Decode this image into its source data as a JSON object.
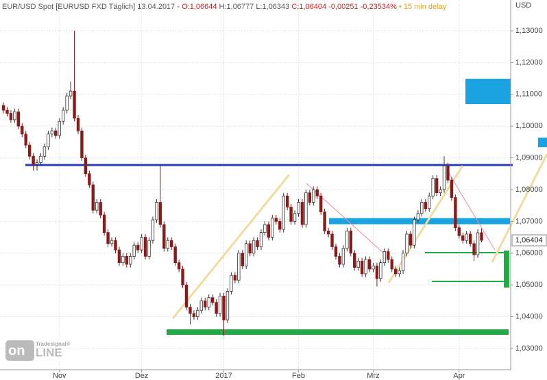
{
  "chart_data": {
    "type": "candlestick",
    "header": {
      "instrument": "EUR/USD Spot [EURUSD FXD Täglich] 13.04.2017 -",
      "open": "O:1,06644",
      "high": "H:1,06777",
      "low": "L:1,06343",
      "close": "C:1,06404 -0,00251 -0,23534%",
      "delay": "• 15 min delay"
    },
    "y_axis_label": "USD",
    "last_price_label": "1,06404",
    "logo": {
      "brand": "Tradesignal®",
      "on": "on",
      "line": "LINE"
    },
    "up_color": "#ffffff",
    "down_color": "#8b1a1a",
    "outline_color": "#333333",
    "grid": true,
    "xlim": [
      -0.92,
      135.8
    ],
    "xticks": [
      {
        "value": 15,
        "label": "Nov"
      },
      {
        "value": 37,
        "label": "Dez"
      },
      {
        "value": 59,
        "label": "2017"
      },
      {
        "value": 79,
        "label": "Feb"
      },
      {
        "value": 99,
        "label": "Mrz"
      },
      {
        "value": 122,
        "label": "Apr"
      }
    ],
    "ylim": [
      1.0233,
      1.1397
    ],
    "yticks": [
      {
        "value": 1.03,
        "label": "1,03000"
      },
      {
        "value": 1.04,
        "label": "1,04000"
      },
      {
        "value": 1.05,
        "label": "1,05000"
      },
      {
        "value": 1.06,
        "label": "1,06000"
      },
      {
        "value": 1.07,
        "label": "1,07000"
      },
      {
        "value": 1.08,
        "label": "1,08000"
      },
      {
        "value": 1.09,
        "label": "1,09000"
      },
      {
        "value": 1.1,
        "label": "1,10000"
      },
      {
        "value": 1.11,
        "label": "1,11000"
      },
      {
        "value": 1.12,
        "label": "1,12000"
      },
      {
        "value": 1.13,
        "label": "1,13000"
      }
    ],
    "open": [
      1.1065,
      1.105,
      1.104,
      1.102,
      1.1045,
      1.1,
      1.0975,
      1.094,
      1.0905,
      1.088,
      1.0885,
      1.0905,
      1.0935,
      1.0975,
      1.0985,
      1.097,
      1.1015,
      1.105,
      1.1095,
      1.111,
      1.1025,
      1.0985,
      1.09,
      1.085,
      1.0815,
      1.0735,
      1.076,
      1.072,
      1.0665,
      1.063,
      1.064,
      1.061,
      1.057,
      1.059,
      1.0565,
      1.059,
      1.0625,
      1.061,
      1.065,
      1.059,
      1.064,
      1.0705,
      1.076,
      1.069,
      1.0615,
      1.064,
      1.062,
      1.057,
      1.055,
      1.05,
      1.043,
      1.041,
      1.04,
      1.042,
      1.045,
      1.043,
      1.046,
      1.0445,
      1.041,
      1.0465,
      1.039,
      1.048,
      1.053,
      1.0515,
      1.06,
      1.056,
      1.063,
      1.06,
      1.064,
      1.062,
      1.0665,
      1.069,
      1.065,
      1.071,
      1.07,
      1.0675,
      1.078,
      1.0745,
      1.07,
      1.0725,
      1.076,
      1.069,
      1.079,
      1.076,
      1.08,
      1.078,
      1.073,
      1.067,
      1.066,
      1.062,
      1.059,
      1.0565,
      1.0615,
      1.067,
      1.06,
      1.0555,
      1.0575,
      1.0535,
      1.058,
      1.055,
      1.056,
      1.052,
      1.057,
      1.0605,
      1.058,
      1.055,
      1.0535,
      1.0545,
      1.06,
      1.066,
      1.0625,
      1.0705,
      1.0725,
      1.076,
      1.074,
      1.078,
      1.0835,
      1.079,
      1.08,
      1.0875,
      1.083,
      1.0775,
      1.068,
      1.0655,
      1.064,
      1.066,
      1.063,
      1.0595,
      1.06644
    ],
    "high": [
      1.1075,
      1.106,
      1.105,
      1.1055,
      1.1055,
      1.101,
      1.0985,
      1.095,
      1.0915,
      1.0895,
      1.0915,
      1.0945,
      1.0985,
      1.0995,
      1.0995,
      1.1025,
      1.106,
      1.1105,
      1.114,
      1.13,
      1.1035,
      1.0995,
      1.091,
      1.086,
      1.0825,
      1.077,
      1.077,
      1.073,
      1.0675,
      1.065,
      1.065,
      1.062,
      1.06,
      1.06,
      1.06,
      1.0635,
      1.0635,
      1.066,
      1.066,
      1.065,
      1.0715,
      1.077,
      1.0875,
      1.07,
      1.065,
      1.065,
      1.063,
      1.058,
      1.056,
      1.051,
      1.044,
      1.042,
      1.043,
      1.046,
      1.046,
      1.047,
      1.047,
      1.0455,
      1.0475,
      1.0475,
      1.049,
      1.054,
      1.054,
      1.061,
      1.061,
      1.064,
      1.064,
      1.065,
      1.065,
      1.0675,
      1.07,
      1.07,
      1.072,
      1.072,
      1.071,
      1.079,
      1.079,
      1.0755,
      1.0735,
      1.077,
      1.077,
      1.08,
      1.08,
      1.081,
      1.081,
      1.079,
      1.074,
      1.068,
      1.067,
      1.063,
      1.06,
      1.0625,
      1.068,
      1.068,
      1.061,
      1.0585,
      1.0585,
      1.059,
      1.059,
      1.057,
      1.057,
      1.058,
      1.0615,
      1.0615,
      1.059,
      1.056,
      1.0555,
      1.061,
      1.067,
      1.067,
      1.0715,
      1.0735,
      1.077,
      1.077,
      1.079,
      1.0845,
      1.0845,
      1.081,
      1.0905,
      1.0885,
      1.084,
      1.0785,
      1.069,
      1.0665,
      1.067,
      1.067,
      1.064,
      1.0675,
      1.06777
    ],
    "low": [
      1.104,
      1.103,
      1.101,
      1.101,
      1.099,
      1.0965,
      1.093,
      1.0895,
      1.086,
      1.086,
      1.0875,
      1.0895,
      1.0925,
      1.0965,
      1.096,
      1.096,
      1.1005,
      1.104,
      1.1085,
      1.1015,
      1.0975,
      1.089,
      1.084,
      1.0805,
      1.0725,
      1.0725,
      1.071,
      1.0655,
      1.062,
      1.062,
      1.06,
      1.056,
      1.056,
      1.0555,
      1.0555,
      1.058,
      1.06,
      1.06,
      1.058,
      1.058,
      1.063,
      1.0695,
      1.068,
      1.0605,
      1.0605,
      1.061,
      1.056,
      1.054,
      1.049,
      1.042,
      1.0375,
      1.039,
      1.039,
      1.041,
      1.042,
      1.042,
      1.0435,
      1.04,
      1.04,
      1.034,
      1.038,
      1.047,
      1.0505,
      1.0505,
      1.055,
      1.055,
      1.059,
      1.059,
      1.061,
      1.061,
      1.0655,
      1.064,
      1.064,
      1.069,
      1.0665,
      1.0665,
      1.0735,
      1.069,
      1.069,
      1.0715,
      1.068,
      1.068,
      1.075,
      1.075,
      1.077,
      1.072,
      1.066,
      1.065,
      1.061,
      1.058,
      1.0555,
      1.0555,
      1.0605,
      1.059,
      1.0545,
      1.0545,
      1.0525,
      1.0525,
      1.054,
      1.054,
      1.0495,
      1.051,
      1.056,
      1.057,
      1.054,
      1.0525,
      1.0525,
      1.0535,
      1.059,
      1.0615,
      1.0615,
      1.0695,
      1.0715,
      1.073,
      1.073,
      1.077,
      1.078,
      1.078,
      1.079,
      1.082,
      1.0765,
      1.067,
      1.0645,
      1.063,
      1.063,
      1.062,
      1.0575,
      1.0585,
      1.06343
    ],
    "close": [
      1.105,
      1.104,
      1.102,
      1.1045,
      1.1,
      1.0975,
      1.094,
      1.0905,
      1.088,
      1.0885,
      1.0905,
      1.0935,
      1.0975,
      1.0985,
      1.097,
      1.1015,
      1.105,
      1.1095,
      1.111,
      1.1025,
      1.0985,
      1.09,
      1.085,
      1.0815,
      1.0735,
      1.076,
      1.072,
      1.0665,
      1.063,
      1.064,
      1.061,
      1.057,
      1.059,
      1.0565,
      1.059,
      1.0625,
      1.061,
      1.065,
      1.059,
      1.064,
      1.0705,
      1.076,
      1.069,
      1.0615,
      1.064,
      1.062,
      1.057,
      1.055,
      1.05,
      1.043,
      1.041,
      1.04,
      1.042,
      1.045,
      1.043,
      1.046,
      1.0445,
      1.041,
      1.0465,
      1.039,
      1.048,
      1.053,
      1.0515,
      1.06,
      1.056,
      1.063,
      1.06,
      1.064,
      1.062,
      1.0665,
      1.069,
      1.065,
      1.071,
      1.07,
      1.0675,
      1.078,
      1.0745,
      1.07,
      1.0725,
      1.076,
      1.069,
      1.079,
      1.076,
      1.08,
      1.078,
      1.073,
      1.067,
      1.066,
      1.062,
      1.059,
      1.0565,
      1.0615,
      1.067,
      1.06,
      1.0555,
      1.0575,
      1.0535,
      1.058,
      1.055,
      1.056,
      1.052,
      1.057,
      1.0605,
      1.058,
      1.055,
      1.0535,
      1.0545,
      1.06,
      1.066,
      1.0625,
      1.0705,
      1.0725,
      1.076,
      1.074,
      1.078,
      1.0835,
      1.079,
      1.08,
      1.0875,
      1.083,
      1.0775,
      1.068,
      1.0655,
      1.064,
      1.066,
      1.063,
      1.0595,
      1.0664,
      1.06404
    ]
  }
}
